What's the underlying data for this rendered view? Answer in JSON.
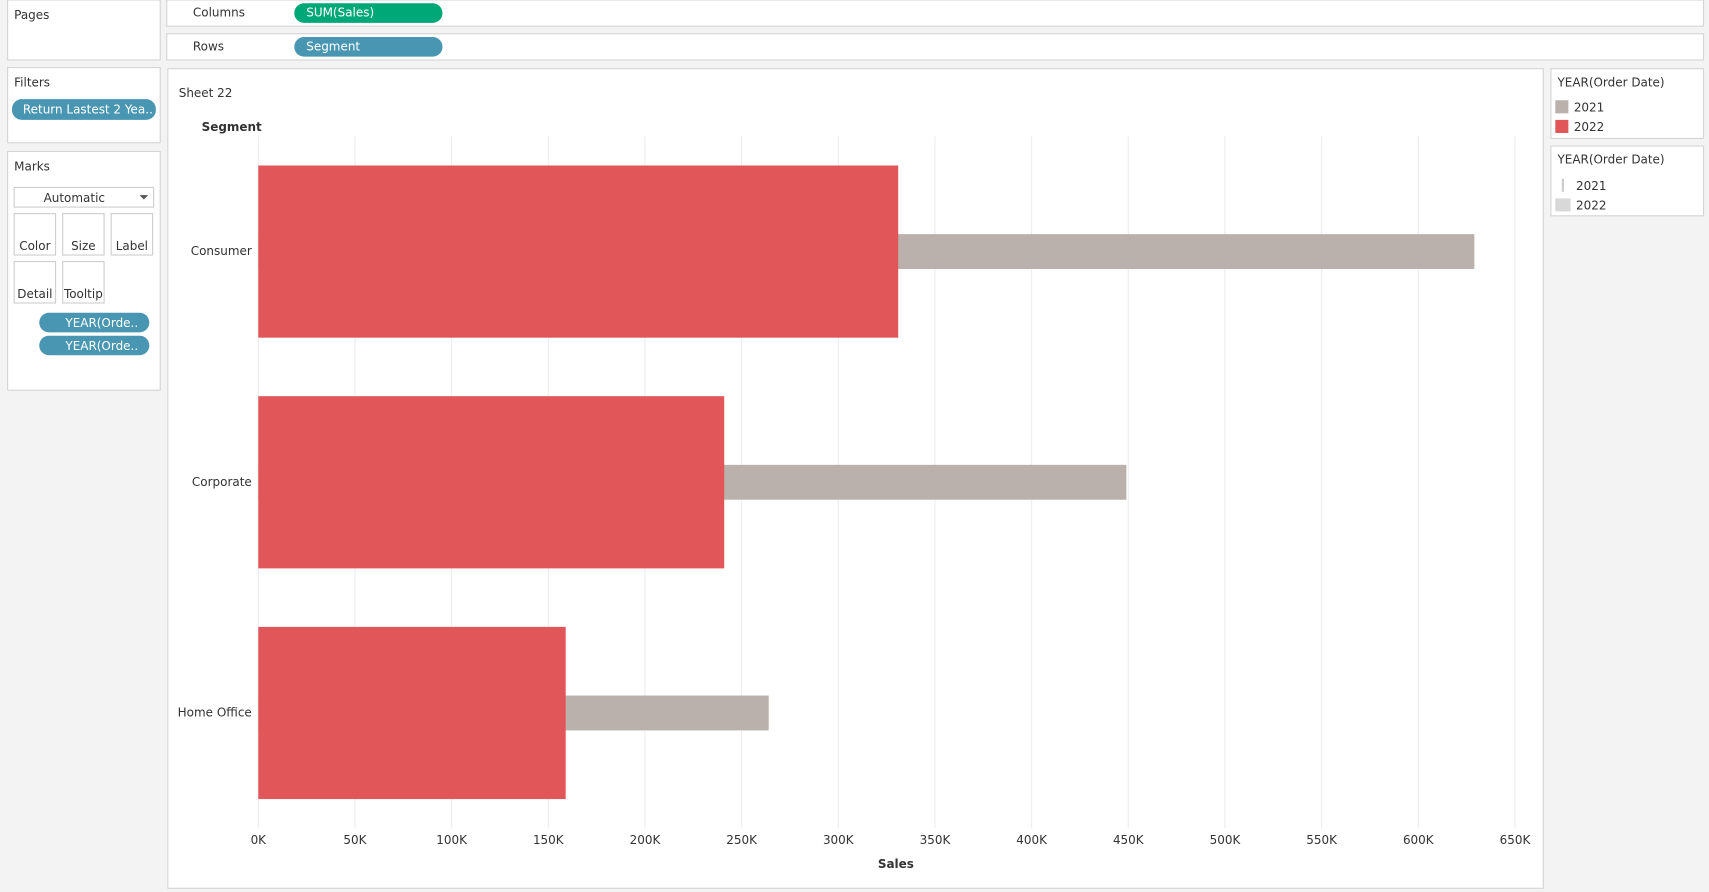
{
  "pages": {
    "title": "Pages"
  },
  "shelves": {
    "columns_label": "Columns",
    "columns_pill": "SUM(Sales)",
    "rows_label": "Rows",
    "rows_pill": "Segment"
  },
  "filters": {
    "title": "Filters",
    "pills": [
      "Return Lastest 2 Yea.."
    ]
  },
  "marks": {
    "title": "Marks",
    "mark_type": "Automatic",
    "buttons": [
      "Color",
      "Size",
      "Label",
      "Detail",
      "Tooltip"
    ],
    "pills": [
      "YEAR(Orde..",
      "YEAR(Orde.."
    ]
  },
  "chart_data": {
    "type": "bar",
    "orientation": "horizontal",
    "title": "Sheet 22",
    "y_label": "Segment",
    "x_label": "Sales",
    "categories": [
      "Consumer",
      "Corporate",
      "Home Office"
    ],
    "series": [
      {
        "name": "2021",
        "color": "#bab0ac",
        "values": [
          629000,
          449000,
          264000
        ]
      },
      {
        "name": "2022",
        "color": "#e15759",
        "values": [
          331000,
          241000,
          159000
        ]
      }
    ],
    "xlim": [
      0,
      650000
    ],
    "xticks": [
      {
        "value": 0,
        "label": "0K"
      },
      {
        "value": 50000,
        "label": "50K"
      },
      {
        "value": 100000,
        "label": "100K"
      },
      {
        "value": 150000,
        "label": "150K"
      },
      {
        "value": 200000,
        "label": "200K"
      },
      {
        "value": 250000,
        "label": "250K"
      },
      {
        "value": 300000,
        "label": "300K"
      },
      {
        "value": 350000,
        "label": "350K"
      },
      {
        "value": 400000,
        "label": "400K"
      },
      {
        "value": 450000,
        "label": "450K"
      },
      {
        "value": 500000,
        "label": "500K"
      },
      {
        "value": 550000,
        "label": "550K"
      },
      {
        "value": 600000,
        "label": "600K"
      },
      {
        "value": 650000,
        "label": "650K"
      }
    ],
    "grid": true,
    "legend_title": "YEAR(Order Date)",
    "size_legend": {
      "title": "YEAR(Order Date)",
      "items": [
        "2021",
        "2022"
      ]
    }
  }
}
